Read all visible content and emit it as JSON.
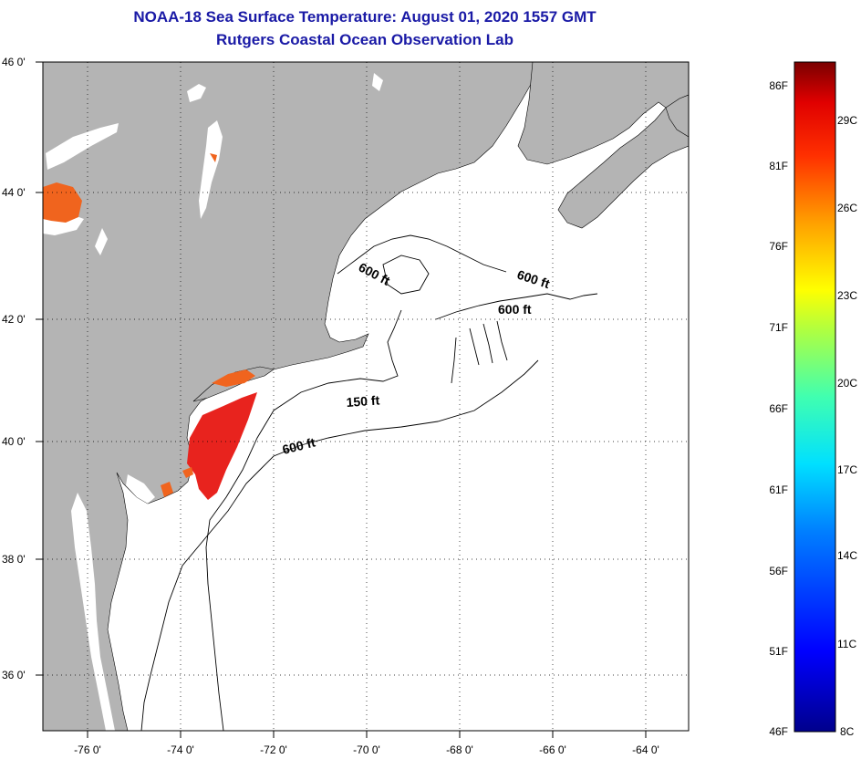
{
  "header": {
    "title": "NOAA-18 Sea Surface Temperature:  August 01, 2020 1557 GMT",
    "subtitle": "Rutgers Coastal Ocean Observation Lab"
  },
  "map": {
    "lat_labels": [
      "46 0'",
      "44 0'",
      "42 0'",
      "40 0'",
      "38 0'",
      "36 0'"
    ],
    "lon_labels": [
      "-76 0'",
      "-74 0'",
      "-72 0'",
      "-70 0'",
      "-68 0'",
      "-66 0'",
      "-64 0'"
    ],
    "contour_labels": [
      "600 ft",
      "600 ft",
      "600 ft",
      "150 ft",
      "600 ft"
    ],
    "colors": {
      "land": "#b4b4b4",
      "ocean": "#ffffff",
      "sst_hot": "#e8231e",
      "sst_warm": "#f0641e"
    }
  },
  "colorbar": {
    "fahrenheit": [
      "86F",
      "81F",
      "76F",
      "71F",
      "66F",
      "61F",
      "56F",
      "51F",
      "46F"
    ],
    "celsius": [
      "29C",
      "26C",
      "23C",
      "20C",
      "17C",
      "14C",
      "11C",
      "8C"
    ]
  }
}
